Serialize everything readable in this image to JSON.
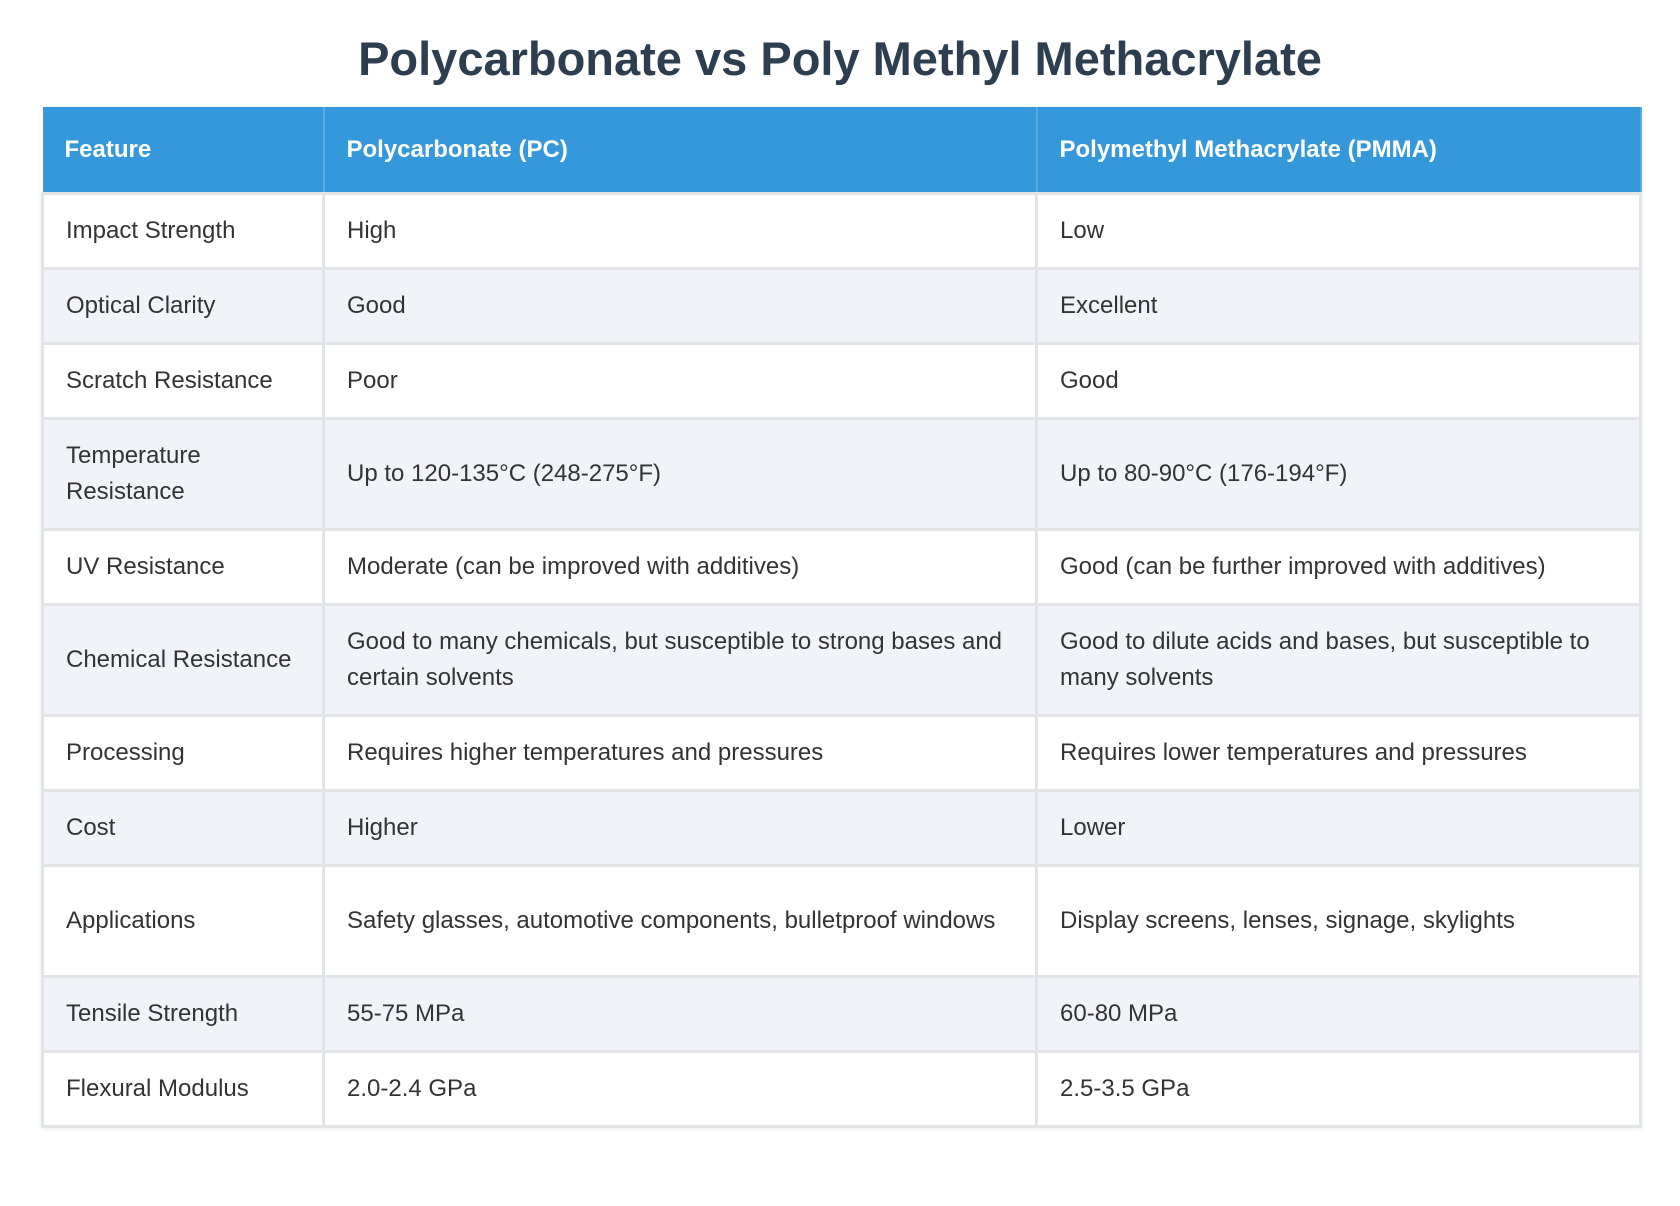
{
  "header": {
    "title": "Polycarbonate vs Poly Methyl Methacrylate"
  },
  "table": {
    "headers": [
      "Feature",
      "Polycarbonate (PC)",
      "Polymethyl Methacrylate (PMMA)"
    ],
    "rows": [
      [
        "Impact Strength",
        "High",
        "Low"
      ],
      [
        "Optical Clarity",
        "Good",
        "Excellent"
      ],
      [
        "Scratch Resistance",
        "Poor",
        "Good"
      ],
      [
        "Temperature Resistance",
        "Up to 120-135°C (248-275°F)",
        "Up to 80-90°C (176-194°F)"
      ],
      [
        "UV Resistance",
        "Moderate (can be improved with additives)",
        "Good (can be further improved with additives)"
      ],
      [
        "Chemical Resistance",
        "Good to many chemicals, but susceptible to strong bases and certain solvents",
        "Good to dilute acids and bases, but susceptible to many solvents"
      ],
      [
        "Processing",
        "Requires higher temperatures and pressures",
        "Requires lower temperatures and pressures"
      ],
      [
        "Cost",
        "Higher",
        "Lower"
      ],
      [
        "Applications",
        "Safety glasses, automotive components, bulletproof windows",
        "Display screens, lenses, signage, skylights"
      ],
      [
        "Tensile Strength",
        "55-75 MPa",
        "60-80 MPa"
      ],
      [
        "Flexural Modulus",
        "2.0-2.4 GPa",
        "2.5-3.5 GPa"
      ]
    ]
  }
}
